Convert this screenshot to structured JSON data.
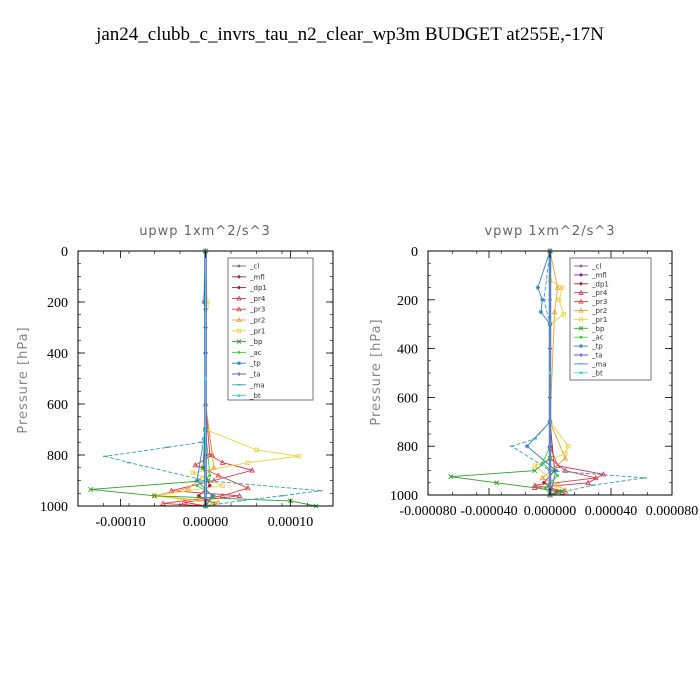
{
  "figure": {
    "title": "jan24_clubb_c_invrs_tau_n2_clear_wp3m  BUDGET at255E,-17N"
  },
  "legend_entries": [
    {
      "name": "_cl",
      "color": "#8a4fb8",
      "marker": "dot"
    },
    {
      "name": "_mfl",
      "color": "#7a2a8a",
      "marker": "diamond"
    },
    {
      "name": "_dp1",
      "color": "#a0203a",
      "marker": "diamond"
    },
    {
      "name": "_pr4",
      "color": "#e0305a",
      "marker": "tri"
    },
    {
      "name": "_pr3",
      "color": "#e04040",
      "marker": "tri"
    },
    {
      "name": "_pr2",
      "color": "#f0a030",
      "marker": "tri"
    },
    {
      "name": "_pr1",
      "color": "#f0d030",
      "marker": "square"
    },
    {
      "name": "_bp",
      "color": "#30a030",
      "marker": "x"
    },
    {
      "name": "_ac",
      "color": "#40d040",
      "marker": "dot"
    },
    {
      "name": "_tp",
      "color": "#3080d0",
      "marker": "star"
    },
    {
      "name": "_ta",
      "color": "#6040d0",
      "marker": "plus"
    },
    {
      "name": "_ma",
      "color": "#30a0c0",
      "marker": "dash"
    },
    {
      "name": "_bt",
      "color": "#30e0e0",
      "marker": "dot"
    }
  ],
  "chart_data": [
    {
      "type": "line",
      "title": "upwp   1xm^2/s^3",
      "xlabel": "",
      "ylabel": "Pressure [hPa]",
      "xlim": [
        -0.00015,
        0.00015
      ],
      "ylim": [
        1000,
        0
      ],
      "xticks": [
        -0.0001,
        0.0,
        0.0001
      ],
      "xtick_labels": [
        "-0.00010",
        "0.00000",
        "0.00010"
      ],
      "yticks": [
        0,
        200,
        400,
        600,
        800,
        1000
      ],
      "ytick_labels": [
        "0",
        "200",
        "400",
        "600",
        "800",
        "1000"
      ],
      "grid": false,
      "legend_position": "top-right",
      "series": [
        {
          "name": "_cl",
          "color": "#8a4fb8",
          "x": [
            0,
            0,
            0,
            0,
            0,
            0,
            0
          ],
          "y": [
            0,
            200,
            400,
            600,
            800,
            900,
            1000
          ]
        },
        {
          "name": "_mfl",
          "color": "#7a2a8a",
          "x": [
            0,
            0,
            0,
            0,
            0,
            0
          ],
          "y": [
            0,
            200,
            400,
            600,
            800,
            1000
          ]
        },
        {
          "name": "_dp1",
          "color": "#a0203a",
          "x": [
            0,
            0,
            0,
            -3e-06,
            5e-06,
            -8e-06,
            1e-05,
            0
          ],
          "y": [
            0,
            300,
            700,
            850,
            920,
            960,
            990,
            1000
          ]
        },
        {
          "name": "_pr4",
          "color": "#e0305a",
          "x": [
            0,
            0,
            5e-06,
            2e-05,
            5.5e-05,
            1e-05,
            -4e-05,
            4e-05,
            -2.5e-05,
            0
          ],
          "y": [
            0,
            600,
            800,
            830,
            860,
            900,
            940,
            960,
            985,
            1000
          ]
        },
        {
          "name": "_pr3",
          "color": "#e04040",
          "x": [
            0,
            0,
            8e-06,
            -1.2e-05,
            1.5e-05,
            5e-05,
            2e-05,
            -5e-05,
            0
          ],
          "y": [
            0,
            600,
            800,
            840,
            880,
            930,
            960,
            990,
            1000
          ]
        },
        {
          "name": "_pr2",
          "color": "#f0a030",
          "x": [
            0,
            0,
            1e-05,
            -2e-05,
            -6e-05,
            1.5e-05,
            0
          ],
          "y": [
            0,
            600,
            850,
            930,
            960,
            985,
            1000
          ]
        },
        {
          "name": "_pr1",
          "color": "#f0d030",
          "x": [
            0,
            2e-06,
            1e-06,
            0,
            6e-05,
            0.00011,
            5e-05,
            -1.5e-05,
            2e-05,
            -6e-05,
            1e-05,
            0
          ],
          "y": [
            0,
            200,
            220,
            700,
            780,
            805,
            830,
            870,
            920,
            960,
            990,
            1000
          ]
        },
        {
          "name": "_bp",
          "color": "#30a030",
          "x": [
            0,
            0,
            -3e-06,
            3e-06,
            -0.000135,
            -6e-05,
            0.0001,
            0.00013,
            0
          ],
          "y": [
            0,
            700,
            850,
            900,
            935,
            960,
            980,
            1000,
            1000
          ]
        },
        {
          "name": "_ac",
          "color": "#40d040",
          "x": [
            0,
            0,
            5e-06,
            -1e-05,
            1e-05,
            0
          ],
          "y": [
            0,
            700,
            880,
            920,
            960,
            1000
          ]
        },
        {
          "name": "_tp",
          "color": "#3080d0",
          "x": [
            0,
            -2e-06,
            0,
            0,
            -1e-05,
            8e-06,
            0
          ],
          "y": [
            0,
            200,
            230,
            700,
            900,
            960,
            1000
          ]
        },
        {
          "name": "_ta",
          "color": "#6040d0",
          "x": [
            0,
            0,
            0,
            0
          ],
          "y": [
            0,
            400,
            800,
            1000
          ]
        },
        {
          "name": "_ma",
          "color": "#30a0c0",
          "x": [
            0,
            0,
            -5e-06,
            -4.5e-05,
            -0.000118,
            -9e-05,
            0,
            0.000135,
            9e-05,
            4e-05,
            0
          ],
          "y": [
            0,
            700,
            750,
            770,
            805,
            830,
            900,
            940,
            960,
            980,
            1000
          ]
        },
        {
          "name": "_bt",
          "color": "#30e0e0",
          "x": [
            0,
            0,
            0
          ],
          "y": [
            0,
            500,
            1000
          ]
        }
      ]
    },
    {
      "type": "line",
      "title": "vpwp   1xm^2/s^3",
      "xlabel": "",
      "ylabel": "Pressure [hPa]",
      "xlim": [
        -8e-05,
        8e-05
      ],
      "ylim": [
        1000,
        0
      ],
      "xticks": [
        -8e-05,
        -4e-05,
        0.0,
        4e-05,
        8e-05
      ],
      "xtick_labels": [
        "-0.000080",
        "-0.000040",
        "0.000000",
        "0.000040",
        "0.000080"
      ],
      "yticks": [
        0,
        200,
        400,
        600,
        800,
        1000
      ],
      "ytick_labels": [
        "0",
        "200",
        "400",
        "600",
        "800",
        "1000"
      ],
      "grid": false,
      "legend_position": "top-right",
      "series": [
        {
          "name": "_cl",
          "color": "#8a4fb8",
          "x": [
            0,
            0,
            0,
            0,
            0,
            0
          ],
          "y": [
            0,
            200,
            400,
            600,
            800,
            1000
          ]
        },
        {
          "name": "_mfl",
          "color": "#7a2a8a",
          "x": [
            0,
            0,
            0,
            0,
            0
          ],
          "y": [
            0,
            300,
            600,
            900,
            1000
          ]
        },
        {
          "name": "_dp1",
          "color": "#a0203a",
          "x": [
            0,
            0,
            3e-06,
            -4e-06,
            5e-06,
            0
          ],
          "y": [
            0,
            700,
            900,
            950,
            985,
            1000
          ]
        },
        {
          "name": "_pr4",
          "color": "#e0305a",
          "x": [
            0,
            0,
            5e-06,
            3.5e-05,
            2.5e-05,
            -1e-05,
            8e-06,
            0
          ],
          "y": [
            0,
            800,
            880,
            915,
            950,
            970,
            990,
            1000
          ]
        },
        {
          "name": "_pr3",
          "color": "#e04040",
          "x": [
            0,
            0,
            1e-05,
            3e-05,
            -1e-05,
            1e-05,
            0
          ],
          "y": [
            0,
            850,
            900,
            930,
            960,
            985,
            1000
          ]
        },
        {
          "name": "_pr2",
          "color": "#f0a030",
          "x": [
            0,
            5e-06,
            3e-06,
            0,
            1e-05,
            -5e-06,
            1e-05,
            0
          ],
          "y": [
            0,
            150,
            250,
            700,
            850,
            930,
            980,
            1000
          ]
        },
        {
          "name": "_pr1",
          "color": "#f0d030",
          "x": [
            0,
            0,
            8e-06,
            6e-06,
            9e-06,
            0,
            0,
            1.2e-05,
            1e-05,
            -1e-05,
            5e-06,
            0
          ],
          "y": [
            0,
            120,
            150,
            200,
            260,
            300,
            700,
            800,
            830,
            880,
            960,
            1000
          ]
        },
        {
          "name": "_bp",
          "color": "#30a030",
          "x": [
            0,
            0,
            -1e-05,
            -6.5e-05,
            -3.5e-05,
            8e-06,
            0
          ],
          "y": [
            0,
            850,
            900,
            925,
            950,
            985,
            1000
          ]
        },
        {
          "name": "_ac",
          "color": "#40d040",
          "x": [
            0,
            0,
            -5e-06,
            5e-06,
            -3e-06,
            0
          ],
          "y": [
            0,
            800,
            870,
            920,
            970,
            1000
          ]
        },
        {
          "name": "_tp",
          "color": "#3080d0",
          "x": [
            0,
            -8e-06,
            -5e-06,
            -6e-06,
            0,
            0,
            -1.5e-05,
            4e-06,
            0
          ],
          "y": [
            0,
            150,
            200,
            250,
            300,
            700,
            800,
            900,
            1000
          ]
        },
        {
          "name": "_ta",
          "color": "#6040d0",
          "x": [
            0,
            0,
            0,
            0
          ],
          "y": [
            0,
            400,
            800,
            1000
          ]
        },
        {
          "name": "_ma",
          "color": "#30a0c0",
          "x": [
            0,
            -4e-06,
            0,
            0,
            -1e-05,
            -2.5e-05,
            0,
            6.2e-05,
            2.8e-05,
            0
          ],
          "y": [
            0,
            200,
            300,
            700,
            770,
            800,
            900,
            930,
            960,
            1000
          ]
        },
        {
          "name": "_bt",
          "color": "#30e0e0",
          "x": [
            0,
            0,
            0
          ],
          "y": [
            0,
            500,
            1000
          ]
        }
      ]
    }
  ]
}
